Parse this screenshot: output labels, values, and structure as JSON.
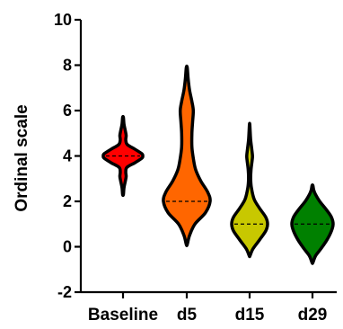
{
  "chart_data": {
    "type": "violin",
    "title": "",
    "xlabel": "",
    "ylabel": "Ordinal scale",
    "ylim": [
      -2,
      10
    ],
    "yticks": [
      -2,
      0,
      2,
      4,
      6,
      8,
      10
    ],
    "categories": [
      "Baseline",
      "d5",
      "d15",
      "d29"
    ],
    "series": [
      {
        "category": "Baseline",
        "color": "#ff0000",
        "median": 4,
        "min": 2.3,
        "max": 5.7,
        "profile": [
          [
            2.3,
            0.02
          ],
          [
            2.6,
            0.05
          ],
          [
            2.9,
            0.12
          ],
          [
            3.1,
            0.16
          ],
          [
            3.3,
            0.14
          ],
          [
            3.5,
            0.2
          ],
          [
            3.7,
            0.6
          ],
          [
            3.9,
            0.95
          ],
          [
            4.0,
            1.0
          ],
          [
            4.1,
            0.95
          ],
          [
            4.3,
            0.6
          ],
          [
            4.5,
            0.22
          ],
          [
            4.7,
            0.14
          ],
          [
            4.9,
            0.16
          ],
          [
            5.1,
            0.12
          ],
          [
            5.4,
            0.05
          ],
          [
            5.7,
            0.02
          ]
        ]
      },
      {
        "category": "d5",
        "color": "#ff6600",
        "median": 2,
        "min": 0.1,
        "max": 7.9,
        "profile": [
          [
            0.1,
            0.02
          ],
          [
            0.5,
            0.12
          ],
          [
            1.0,
            0.35
          ],
          [
            1.5,
            0.8
          ],
          [
            2.0,
            1.0
          ],
          [
            2.4,
            0.9
          ],
          [
            2.9,
            0.6
          ],
          [
            3.4,
            0.38
          ],
          [
            3.9,
            0.28
          ],
          [
            4.4,
            0.22
          ],
          [
            5.0,
            0.22
          ],
          [
            5.5,
            0.25
          ],
          [
            6.0,
            0.28
          ],
          [
            6.4,
            0.22
          ],
          [
            6.9,
            0.12
          ],
          [
            7.4,
            0.06
          ],
          [
            7.9,
            0.02
          ]
        ]
      },
      {
        "category": "d15",
        "color": "#c8c800",
        "median": 1,
        "min": -0.4,
        "max": 5.4,
        "profile": [
          [
            -0.4,
            0.02
          ],
          [
            -0.1,
            0.18
          ],
          [
            0.3,
            0.55
          ],
          [
            0.7,
            0.9
          ],
          [
            1.0,
            1.0
          ],
          [
            1.3,
            0.9
          ],
          [
            1.7,
            0.55
          ],
          [
            2.1,
            0.25
          ],
          [
            2.6,
            0.1
          ],
          [
            3.0,
            0.06
          ],
          [
            3.4,
            0.08
          ],
          [
            3.8,
            0.14
          ],
          [
            4.0,
            0.16
          ],
          [
            4.3,
            0.12
          ],
          [
            4.7,
            0.06
          ],
          [
            5.1,
            0.03
          ],
          [
            5.4,
            0.01
          ]
        ]
      },
      {
        "category": "d29",
        "color": "#008000",
        "median": 1,
        "min": -0.7,
        "max": 2.7,
        "profile": [
          [
            -0.7,
            0.02
          ],
          [
            -0.4,
            0.15
          ],
          [
            -0.1,
            0.4
          ],
          [
            0.3,
            0.7
          ],
          [
            0.7,
            0.92
          ],
          [
            1.0,
            1.0
          ],
          [
            1.3,
            0.92
          ],
          [
            1.6,
            0.7
          ],
          [
            2.0,
            0.35
          ],
          [
            2.3,
            0.15
          ],
          [
            2.5,
            0.06
          ],
          [
            2.7,
            0.02
          ]
        ]
      }
    ]
  }
}
